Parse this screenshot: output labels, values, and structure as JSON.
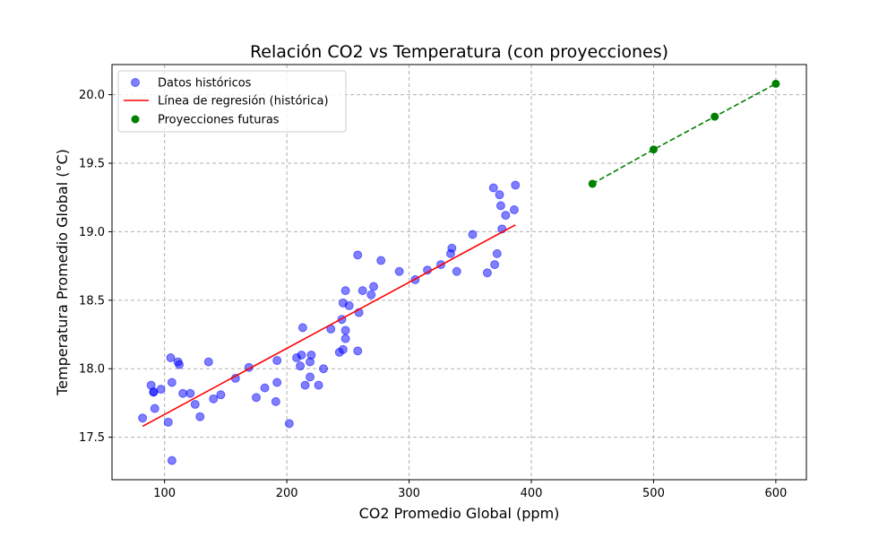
{
  "chart_data": {
    "type": "scatter",
    "title": "Relación CO2 vs Temperatura (con proyecciones)",
    "xlabel": "CO2 Promedio Global (ppm)",
    "ylabel": "Temperatura Promedio Global (°C)",
    "xlim": [
      57,
      625
    ],
    "ylim": [
      17.19,
      20.22
    ],
    "xticks": [
      100,
      200,
      300,
      400,
      500,
      600
    ],
    "yticks": [
      17.5,
      18.0,
      18.5,
      19.0,
      19.5,
      20.0
    ],
    "xtick_labels": [
      "100",
      "200",
      "300",
      "400",
      "500",
      "600"
    ],
    "ytick_labels": [
      "17.5",
      "18.0",
      "18.5",
      "19.0",
      "19.5",
      "20.0"
    ],
    "grid": true,
    "legend_position": "top-left",
    "series": [
      {
        "name": "Datos históricos",
        "kind": "scatter",
        "color": "#0000ff",
        "points": [
          [
            82,
            17.64
          ],
          [
            89,
            17.88
          ],
          [
            91,
            17.83
          ],
          [
            91,
            17.83
          ],
          [
            92,
            17.71
          ],
          [
            97,
            17.85
          ],
          [
            103,
            17.61
          ],
          [
            105,
            18.08
          ],
          [
            106,
            17.9
          ],
          [
            106,
            17.33
          ],
          [
            111,
            18.05
          ],
          [
            112,
            18.03
          ],
          [
            115,
            17.82
          ],
          [
            121,
            17.82
          ],
          [
            125,
            17.74
          ],
          [
            129,
            17.65
          ],
          [
            136,
            18.05
          ],
          [
            140,
            17.78
          ],
          [
            146,
            17.81
          ],
          [
            158,
            17.93
          ],
          [
            169,
            18.01
          ],
          [
            175,
            17.79
          ],
          [
            182,
            17.86
          ],
          [
            191,
            17.76
          ],
          [
            192,
            17.9
          ],
          [
            192,
            18.06
          ],
          [
            202,
            17.6
          ],
          [
            208,
            18.08
          ],
          [
            211,
            18.02
          ],
          [
            212,
            18.1
          ],
          [
            213,
            18.3
          ],
          [
            215,
            17.88
          ],
          [
            219,
            18.05
          ],
          [
            219,
            17.94
          ],
          [
            220,
            18.1
          ],
          [
            226,
            17.88
          ],
          [
            230,
            18.0
          ],
          [
            236,
            18.29
          ],
          [
            243,
            18.12
          ],
          [
            245,
            18.36
          ],
          [
            246,
            18.14
          ],
          [
            246,
            18.48
          ],
          [
            248,
            18.57
          ],
          [
            248,
            18.28
          ],
          [
            248,
            18.22
          ],
          [
            251,
            18.46
          ],
          [
            258,
            18.83
          ],
          [
            258,
            18.13
          ],
          [
            259,
            18.41
          ],
          [
            262,
            18.57
          ],
          [
            269,
            18.54
          ],
          [
            271,
            18.6
          ],
          [
            277,
            18.79
          ],
          [
            292,
            18.71
          ],
          [
            305,
            18.65
          ],
          [
            315,
            18.72
          ],
          [
            326,
            18.76
          ],
          [
            334,
            18.84
          ],
          [
            335,
            18.88
          ],
          [
            339,
            18.71
          ],
          [
            352,
            18.98
          ],
          [
            364,
            18.7
          ],
          [
            369,
            19.32
          ],
          [
            370,
            18.76
          ],
          [
            372,
            18.84
          ],
          [
            374,
            19.27
          ],
          [
            375,
            19.19
          ],
          [
            376,
            19.02
          ],
          [
            379,
            19.12
          ],
          [
            386,
            19.16
          ],
          [
            387,
            19.34
          ]
        ]
      },
      {
        "name": "Línea de regresión (histórica)",
        "kind": "line",
        "color": "#ff0000",
        "points": [
          [
            82,
            17.58
          ],
          [
            387,
            19.05
          ]
        ]
      },
      {
        "name": "Proyecciones futuras",
        "kind": "scatter",
        "color": "#008000",
        "dashed_connector": true,
        "points": [
          [
            450,
            19.35
          ],
          [
            500,
            19.6
          ],
          [
            550,
            19.84
          ],
          [
            600,
            20.08
          ]
        ]
      }
    ]
  }
}
